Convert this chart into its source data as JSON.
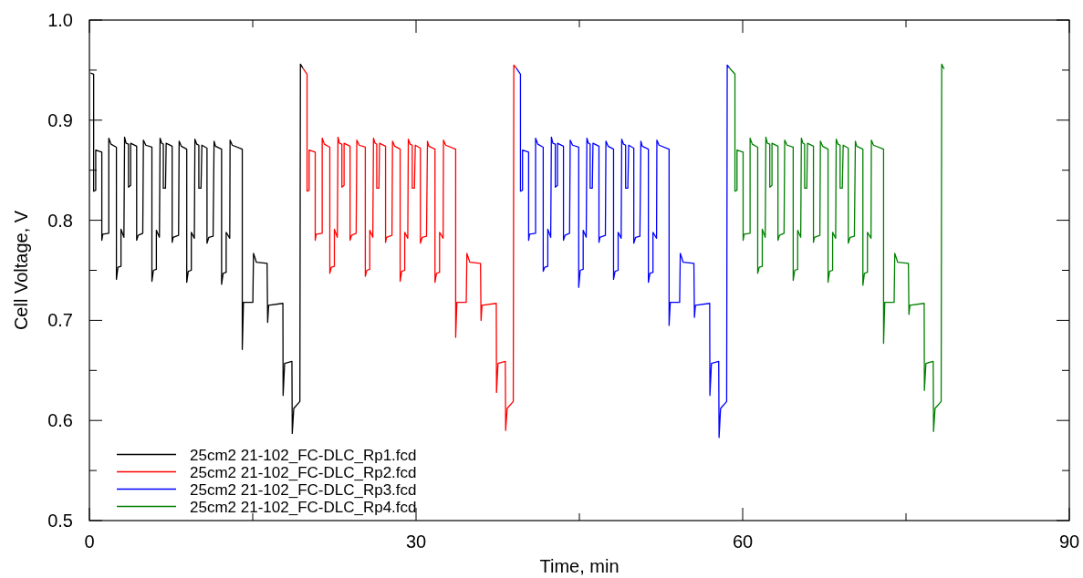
{
  "chart_data": {
    "type": "line",
    "xlabel": "Time, min",
    "ylabel": "Cell Voltage, V",
    "xlim": [
      0,
      90
    ],
    "ylim": [
      0.5,
      1.0
    ],
    "xticks": [
      0,
      {
        "value": 15,
        "label": null
      },
      30,
      {
        "value": 45,
        "label": null
      },
      60,
      {
        "value": 75,
        "label": null
      },
      90
    ],
    "yticks": [
      0.5,
      {
        "value": 0.55,
        "label": null
      },
      0.6,
      {
        "value": 0.65,
        "label": null
      },
      0.7,
      {
        "value": 0.75,
        "label": null
      },
      0.8,
      {
        "value": 0.85,
        "label": null
      },
      0.9,
      {
        "value": 0.95,
        "label": null
      },
      {
        "value": 1.0,
        "label": "1.0"
      }
    ],
    "grid": false,
    "legend": "bottom left",
    "marker": "none",
    "line_style": "solid",
    "series": [
      {
        "name": "25cm2 21-102_FC-DLC_Rp1.fcd",
        "color": "#000000",
        "x": [
          0.11,
          0.39,
          0.39,
          0.58,
          0.58,
          1.14,
          1.14,
          1.23,
          1.78,
          1.78,
          1.98,
          2.48,
          2.48,
          2.62,
          2.9,
          2.9,
          3.17,
          3.23,
          3.37,
          3.59,
          3.59,
          3.79,
          3.79,
          4.34,
          4.34,
          4.48,
          4.9,
          4.96,
          5.18,
          5.74,
          5.74,
          5.88,
          6.15,
          6.15,
          6.43,
          6.49,
          6.63,
          6.79,
          6.79,
          6.99,
          7.05,
          7.6,
          7.6,
          7.69,
          8.19,
          8.24,
          8.44,
          8.94,
          8.94,
          9.08,
          9.36,
          9.36,
          9.64,
          9.69,
          9.86,
          10.05,
          10.05,
          10.25,
          10.33,
          10.8,
          10.8,
          10.97,
          11.36,
          11.45,
          11.58,
          12.14,
          12.14,
          12.28,
          12.56,
          12.56,
          12.89,
          12.92,
          13.12,
          14.04,
          14.04,
          14.15,
          15.01,
          15.07,
          15.34,
          16.32,
          16.37,
          16.46,
          17.77,
          17.79,
          17.93,
          18.6,
          18.63,
          18.77,
          19.33,
          19.38,
          19.6
        ],
        "values": [
          0.947,
          0.946,
          0.829,
          0.83,
          0.87,
          0.868,
          0.78,
          0.786,
          0.787,
          0.882,
          0.876,
          0.873,
          0.741,
          0.753,
          0.754,
          0.791,
          0.783,
          0.883,
          0.877,
          0.876,
          0.833,
          0.835,
          0.877,
          0.874,
          0.78,
          0.785,
          0.787,
          0.88,
          0.875,
          0.873,
          0.739,
          0.75,
          0.751,
          0.79,
          0.783,
          0.882,
          0.877,
          0.876,
          0.832,
          0.832,
          0.877,
          0.874,
          0.778,
          0.783,
          0.785,
          0.879,
          0.874,
          0.871,
          0.738,
          0.749,
          0.75,
          0.788,
          0.782,
          0.881,
          0.876,
          0.875,
          0.832,
          0.832,
          0.875,
          0.872,
          0.777,
          0.783,
          0.784,
          0.879,
          0.874,
          0.871,
          0.736,
          0.747,
          0.748,
          0.788,
          0.782,
          0.88,
          0.875,
          0.871,
          0.671,
          0.718,
          0.718,
          0.767,
          0.758,
          0.757,
          0.698,
          0.715,
          0.717,
          0.625,
          0.657,
          0.659,
          0.587,
          0.612,
          0.619,
          0.956,
          0.952
        ]
      },
      {
        "name": "25cm2 21-102_FC-DLC_Rp2.fcd",
        "color": "#ff0000",
        "x": [
          19.6,
          19.99,
          19.99,
          20.18,
          20.18,
          20.74,
          20.74,
          20.83,
          21.38,
          21.38,
          21.58,
          22.08,
          22.08,
          22.22,
          22.5,
          22.5,
          22.77,
          22.83,
          22.97,
          23.19,
          23.19,
          23.39,
          23.39,
          23.94,
          23.94,
          24.08,
          24.5,
          24.56,
          24.78,
          25.34,
          25.34,
          25.48,
          25.75,
          25.75,
          26.03,
          26.09,
          26.23,
          26.39,
          26.39,
          26.59,
          26.65,
          27.2,
          27.2,
          27.29,
          27.79,
          27.84,
          28.04,
          28.54,
          28.54,
          28.68,
          28.96,
          28.96,
          29.24,
          29.29,
          29.46,
          29.65,
          29.65,
          29.85,
          29.93,
          30.4,
          30.4,
          30.57,
          30.96,
          31.05,
          31.18,
          31.74,
          31.74,
          31.88,
          32.16,
          32.16,
          32.49,
          32.52,
          32.72,
          33.64,
          33.64,
          33.75,
          34.61,
          34.67,
          34.94,
          35.92,
          35.97,
          36.06,
          37.37,
          37.39,
          37.53,
          38.2,
          38.23,
          38.37,
          38.93,
          38.98,
          39.2
        ],
        "values": [
          0.952,
          0.946,
          0.829,
          0.83,
          0.87,
          0.868,
          0.78,
          0.786,
          0.787,
          0.882,
          0.876,
          0.873,
          0.747,
          0.753,
          0.754,
          0.791,
          0.783,
          0.883,
          0.877,
          0.876,
          0.833,
          0.835,
          0.877,
          0.874,
          0.78,
          0.785,
          0.787,
          0.88,
          0.875,
          0.873,
          0.744,
          0.75,
          0.751,
          0.79,
          0.783,
          0.882,
          0.877,
          0.876,
          0.832,
          0.832,
          0.877,
          0.874,
          0.778,
          0.783,
          0.785,
          0.879,
          0.874,
          0.871,
          0.739,
          0.749,
          0.75,
          0.788,
          0.782,
          0.881,
          0.876,
          0.875,
          0.832,
          0.832,
          0.875,
          0.872,
          0.777,
          0.783,
          0.784,
          0.879,
          0.874,
          0.871,
          0.738,
          0.747,
          0.748,
          0.788,
          0.782,
          0.88,
          0.875,
          0.871,
          0.683,
          0.718,
          0.718,
          0.767,
          0.758,
          0.757,
          0.7,
          0.715,
          0.717,
          0.628,
          0.657,
          0.659,
          0.59,
          0.612,
          0.619,
          0.955,
          0.952
        ]
      },
      {
        "name": "25cm2 21-102_FC-DLC_Rp3.fcd",
        "color": "#0000ff",
        "x": [
          39.2,
          39.59,
          39.59,
          39.78,
          39.78,
          40.34,
          40.34,
          40.43,
          40.98,
          40.98,
          41.18,
          41.68,
          41.68,
          41.82,
          42.1,
          42.1,
          42.37,
          42.43,
          42.57,
          42.79,
          42.79,
          42.99,
          42.99,
          43.54,
          43.54,
          43.68,
          44.1,
          44.16,
          44.38,
          44.94,
          44.94,
          45.08,
          45.35,
          45.35,
          45.63,
          45.69,
          45.83,
          45.99,
          45.99,
          46.19,
          46.25,
          46.8,
          46.8,
          46.89,
          47.39,
          47.44,
          47.64,
          48.14,
          48.14,
          48.28,
          48.56,
          48.56,
          48.84,
          48.89,
          49.06,
          49.25,
          49.25,
          49.45,
          49.53,
          50.0,
          50.0,
          50.17,
          50.56,
          50.65,
          50.78,
          51.34,
          51.34,
          51.48,
          51.76,
          51.76,
          52.09,
          52.12,
          52.32,
          53.24,
          53.24,
          53.35,
          54.21,
          54.27,
          54.54,
          55.52,
          55.57,
          55.66,
          56.97,
          56.99,
          57.13,
          57.8,
          57.83,
          57.97,
          58.53,
          58.58,
          58.8
        ],
        "values": [
          0.952,
          0.946,
          0.829,
          0.83,
          0.87,
          0.868,
          0.78,
          0.786,
          0.787,
          0.882,
          0.876,
          0.873,
          0.749,
          0.753,
          0.754,
          0.791,
          0.783,
          0.883,
          0.877,
          0.876,
          0.833,
          0.835,
          0.877,
          0.874,
          0.78,
          0.785,
          0.787,
          0.88,
          0.875,
          0.873,
          0.733,
          0.75,
          0.751,
          0.79,
          0.783,
          0.882,
          0.877,
          0.876,
          0.832,
          0.832,
          0.877,
          0.874,
          0.778,
          0.783,
          0.785,
          0.879,
          0.874,
          0.871,
          0.741,
          0.749,
          0.75,
          0.788,
          0.782,
          0.881,
          0.876,
          0.875,
          0.832,
          0.832,
          0.875,
          0.872,
          0.777,
          0.783,
          0.784,
          0.879,
          0.874,
          0.871,
          0.738,
          0.747,
          0.748,
          0.788,
          0.782,
          0.88,
          0.875,
          0.871,
          0.695,
          0.718,
          0.718,
          0.767,
          0.758,
          0.757,
          0.703,
          0.715,
          0.717,
          0.625,
          0.657,
          0.659,
          0.583,
          0.612,
          0.619,
          0.955,
          0.952
        ]
      },
      {
        "name": "25cm2 21-102_FC-DLC_Rp4.fcd",
        "color": "#008000",
        "x": [
          58.8,
          59.29,
          59.29,
          59.48,
          59.48,
          60.04,
          60.04,
          60.13,
          60.68,
          60.68,
          60.88,
          61.38,
          61.38,
          61.52,
          61.8,
          61.8,
          62.07,
          62.13,
          62.27,
          62.49,
          62.49,
          62.69,
          62.69,
          63.24,
          63.24,
          63.38,
          63.8,
          63.86,
          64.08,
          64.64,
          64.64,
          64.78,
          65.05,
          65.05,
          65.33,
          65.39,
          65.53,
          65.69,
          65.69,
          65.89,
          65.95,
          66.5,
          66.5,
          66.59,
          67.09,
          67.14,
          67.34,
          67.84,
          67.84,
          67.98,
          68.26,
          68.26,
          68.54,
          68.59,
          68.76,
          68.95,
          68.95,
          69.15,
          69.23,
          69.7,
          69.7,
          69.87,
          70.26,
          70.35,
          70.48,
          71.04,
          71.04,
          71.18,
          71.46,
          71.46,
          71.79,
          71.82,
          72.02,
          72.94,
          72.94,
          73.05,
          73.91,
          73.97,
          74.24,
          75.22,
          75.27,
          75.36,
          76.67,
          76.69,
          76.83,
          77.5,
          77.53,
          77.67,
          78.23,
          78.28,
          78.5
        ],
        "values": [
          0.952,
          0.946,
          0.829,
          0.83,
          0.87,
          0.868,
          0.78,
          0.786,
          0.787,
          0.882,
          0.876,
          0.873,
          0.747,
          0.753,
          0.754,
          0.791,
          0.783,
          0.883,
          0.877,
          0.876,
          0.833,
          0.835,
          0.877,
          0.874,
          0.78,
          0.785,
          0.787,
          0.88,
          0.875,
          0.873,
          0.74,
          0.75,
          0.751,
          0.79,
          0.783,
          0.882,
          0.877,
          0.876,
          0.832,
          0.832,
          0.877,
          0.874,
          0.778,
          0.783,
          0.785,
          0.879,
          0.874,
          0.871,
          0.738,
          0.749,
          0.75,
          0.788,
          0.782,
          0.881,
          0.876,
          0.875,
          0.832,
          0.832,
          0.875,
          0.872,
          0.777,
          0.783,
          0.784,
          0.879,
          0.874,
          0.871,
          0.735,
          0.747,
          0.748,
          0.788,
          0.782,
          0.88,
          0.875,
          0.871,
          0.677,
          0.718,
          0.718,
          0.767,
          0.758,
          0.757,
          0.706,
          0.715,
          0.717,
          0.63,
          0.657,
          0.659,
          0.589,
          0.612,
          0.619,
          0.956,
          0.951
        ]
      }
    ]
  }
}
